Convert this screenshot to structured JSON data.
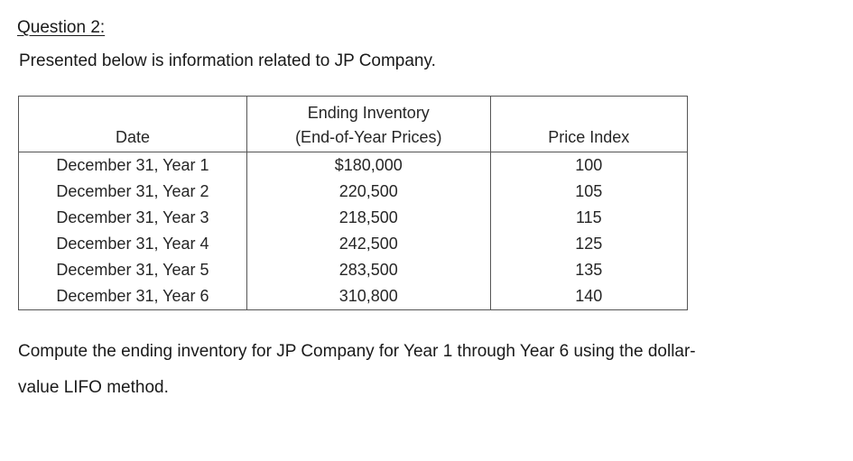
{
  "question": {
    "heading": "Question 2:",
    "intro": "Presented below is information related to JP Company."
  },
  "table": {
    "headers": {
      "date": "Date",
      "inventory_line1": "Ending Inventory",
      "inventory_line2": "(End-of-Year Prices)",
      "price_index": "Price Index"
    },
    "rows": [
      {
        "date": "December 31, Year 1",
        "inventory": "$180,000",
        "price_index": "100"
      },
      {
        "date": "December 31, Year 2",
        "inventory": "220,500",
        "price_index": "105"
      },
      {
        "date": "December 31, Year 3",
        "inventory": "218,500",
        "price_index": "115"
      },
      {
        "date": "December 31, Year 4",
        "inventory": "242,500",
        "price_index": "125"
      },
      {
        "date": "December 31, Year 5",
        "inventory": "283,500",
        "price_index": "135"
      },
      {
        "date": "December 31, Year 6",
        "inventory": "310,800",
        "price_index": "140"
      }
    ]
  },
  "instruction": {
    "line1": "Compute the ending inventory for JP Company for Year 1 through Year 6 using the dollar-",
    "line2": "value LIFO method."
  }
}
